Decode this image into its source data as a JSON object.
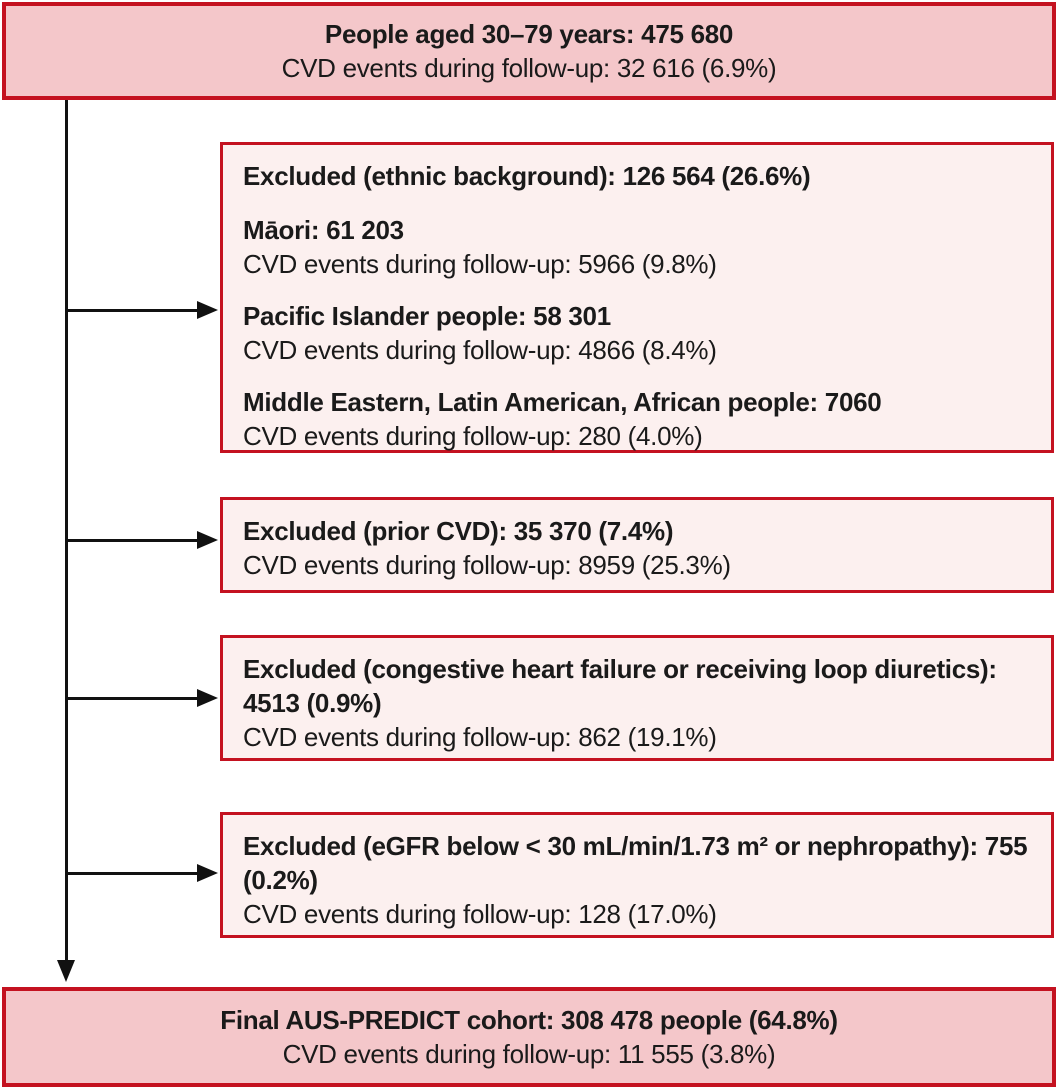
{
  "colors": {
    "border_red": "#c41220",
    "fill_dark_pink": "#f4c7ca",
    "fill_light_pink": "#fcf0ef",
    "text": "#1a1a1a",
    "connector_black": "#111111"
  },
  "top_box": {
    "line1": "People aged 30–79 years: 475 680",
    "line2": "CVD events during follow-up: 32 616 (6.9%)"
  },
  "exclusion_boxes": [
    {
      "title": "Excluded (ethnic background): 126 564 (26.6%)",
      "groups": [
        {
          "name": "Māori: 61 203",
          "events": "CVD events during follow-up: 5966 (9.8%)"
        },
        {
          "name": "Pacific Islander people: 58 301",
          "events": "CVD events during follow-up: 4866 (8.4%)"
        },
        {
          "name": "Middle Eastern, Latin American, African people: 7060",
          "events": "CVD events during follow-up: 280 (4.0%)"
        }
      ]
    },
    {
      "title": "Excluded (prior CVD): 35 370 (7.4%)",
      "events": "CVD events during follow-up: 8959 (25.3%)"
    },
    {
      "title": "Excluded (congestive heart failure or receiving loop diuretics): 4513 (0.9%)",
      "events": "CVD events during follow-up: 862 (19.1%)"
    },
    {
      "title": "Excluded (eGFR below < 30 mL/min/1.73 m² or nephropathy): 755 (0.2%)",
      "events": "CVD events during follow-up: 128 (17.0%)"
    }
  ],
  "final_box": {
    "line1": "Final AUS-PREDICT cohort: 308 478 people (64.8%)",
    "line2": "CVD events during follow-up: 11 555 (3.8%)"
  }
}
